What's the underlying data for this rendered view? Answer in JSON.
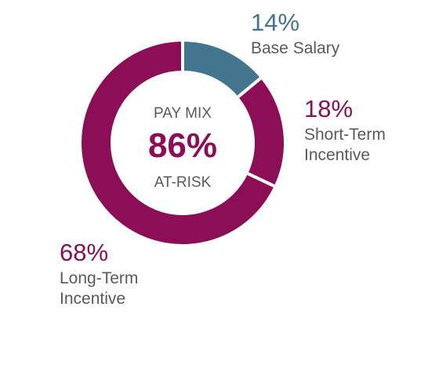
{
  "chart_data": {
    "type": "pie",
    "variant": "donut",
    "center": {
      "line1": "PAY MIX",
      "value": "86%",
      "line2": "AT-RISK"
    },
    "slices": [
      {
        "value": 14,
        "percent_label": "14%",
        "label_lines": [
          "Base Salary"
        ],
        "color": "#44758e"
      },
      {
        "value": 18,
        "percent_label": "18%",
        "label_lines": [
          "Short-Term",
          "Incentive"
        ],
        "color": "#8b0e57"
      },
      {
        "value": 68,
        "percent_label": "68%",
        "label_lines": [
          "Long-Term",
          "Incentive"
        ],
        "color": "#8b0e57"
      }
    ]
  },
  "colors": {
    "center_text": "#5a5a5a",
    "center_value": "#8b0e57",
    "label_text": "#5a5a5a"
  }
}
